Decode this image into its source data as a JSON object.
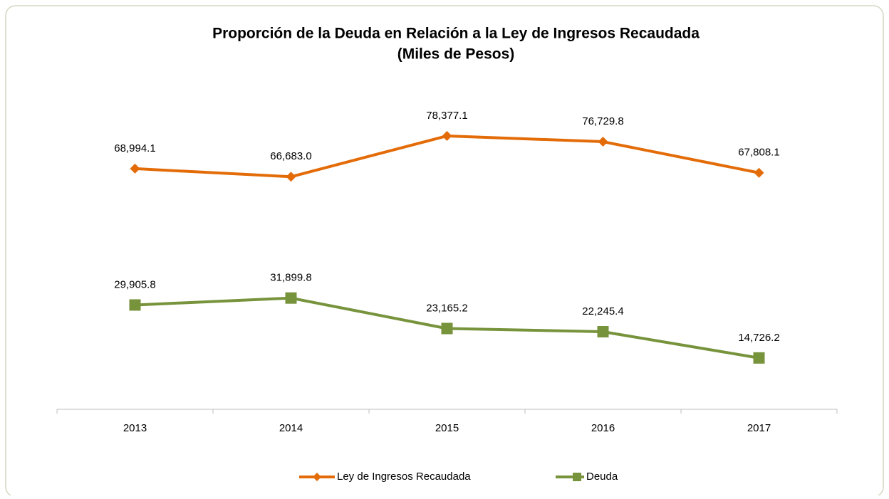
{
  "chart_data": {
    "type": "line",
    "title": "Proporción de la Deuda  en Relación a la Ley de  Ingresos Recaudada",
    "subtitle": "(Miles de Pesos)",
    "categories": [
      "2013",
      "2014",
      "2015",
      "2016",
      "2017"
    ],
    "ylim": [
      0,
      90000
    ],
    "legend": "bottom",
    "series": [
      {
        "name": "Ley de Ingresos Recaudada",
        "color": "#e36c09",
        "marker": "diamond",
        "values": [
          68994.1,
          66683.0,
          78377.1,
          76729.8,
          67808.1
        ],
        "value_labels": [
          "68,994.1",
          "66,683.0",
          "78,377.1",
          "76,729.8",
          "67,808.1"
        ]
      },
      {
        "name": "Deuda",
        "color": "#77933c",
        "marker": "square",
        "values": [
          29905.8,
          31899.8,
          23165.2,
          22245.4,
          14726.2
        ],
        "value_labels": [
          "29,905.8",
          "31,899.8",
          "23,165.2",
          "22,245.4",
          "14,726.2"
        ]
      }
    ]
  }
}
